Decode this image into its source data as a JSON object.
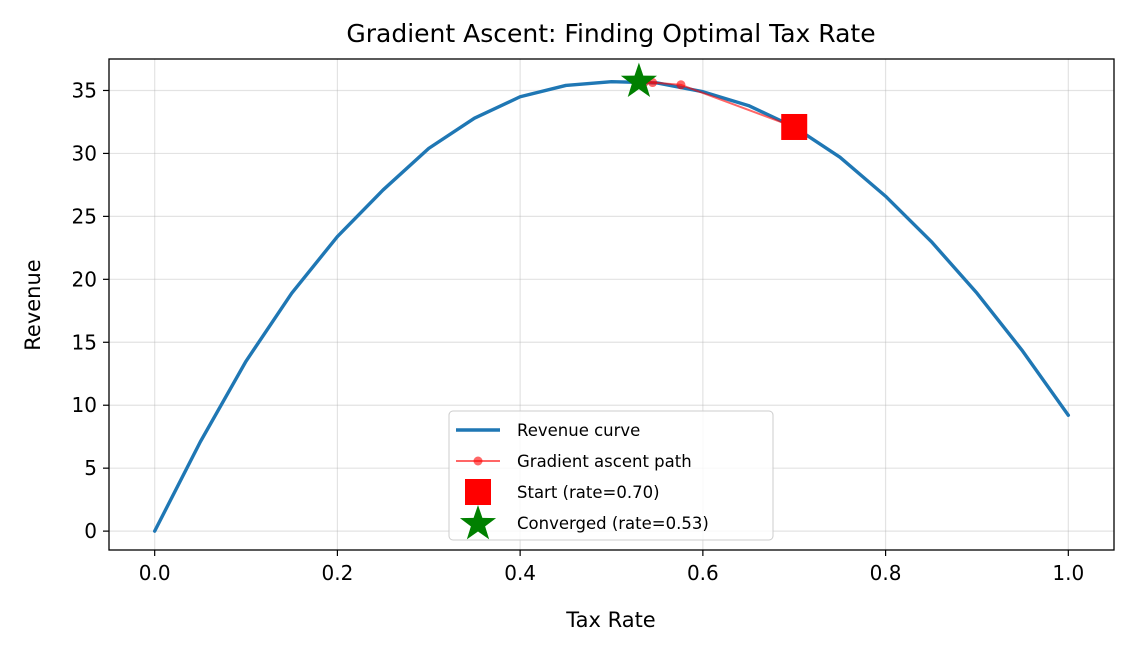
{
  "chart_data": {
    "type": "line",
    "title": "Gradient Ascent: Finding Optimal Tax Rate",
    "xlabel": "Tax Rate",
    "ylabel": "Revenue",
    "xlim": [
      -0.05,
      1.05
    ],
    "ylim": [
      -1.5,
      37.5
    ],
    "xticks": [
      0.0,
      0.2,
      0.4,
      0.6,
      0.8,
      1.0
    ],
    "xtick_labels": [
      "0.0",
      "0.2",
      "0.4",
      "0.6",
      "0.8",
      "1.0"
    ],
    "yticks": [
      0,
      5,
      10,
      15,
      20,
      25,
      30,
      35
    ],
    "ytick_labels": [
      "0",
      "5",
      "10",
      "15",
      "20",
      "25",
      "30",
      "35"
    ],
    "grid": true,
    "legend_position": "bottom-center",
    "series": [
      {
        "name": "Revenue curve",
        "kind": "line",
        "color": "#1f77b4",
        "x": [
          0.0,
          0.05,
          0.1,
          0.15,
          0.2,
          0.25,
          0.3,
          0.35,
          0.4,
          0.45,
          0.5,
          0.55,
          0.6,
          0.65,
          0.7,
          0.75,
          0.8,
          0.85,
          0.9,
          0.95,
          1.0
        ],
        "y": [
          0.0,
          7.1,
          13.5,
          18.9,
          23.4,
          27.1,
          30.4,
          32.8,
          34.5,
          35.4,
          35.7,
          35.6,
          34.9,
          33.8,
          32.1,
          29.7,
          26.6,
          23.0,
          18.9,
          14.3,
          9.2
        ]
      },
      {
        "name": "Gradient ascent path",
        "kind": "line-marker",
        "color": "#ff0000",
        "x": [
          0.7,
          0.576,
          0.545,
          0.536,
          0.532,
          0.53
        ],
        "y": [
          32.1,
          35.45,
          35.63,
          35.66,
          35.67,
          35.67
        ]
      },
      {
        "name": "Start (rate=0.70)",
        "kind": "square-marker",
        "color": "#ff0000",
        "x": [
          0.7
        ],
        "y": [
          32.1
        ]
      },
      {
        "name": "Converged (rate=0.53)",
        "kind": "star-marker",
        "color": "#008000",
        "x": [
          0.53
        ],
        "y": [
          35.7
        ]
      }
    ]
  }
}
